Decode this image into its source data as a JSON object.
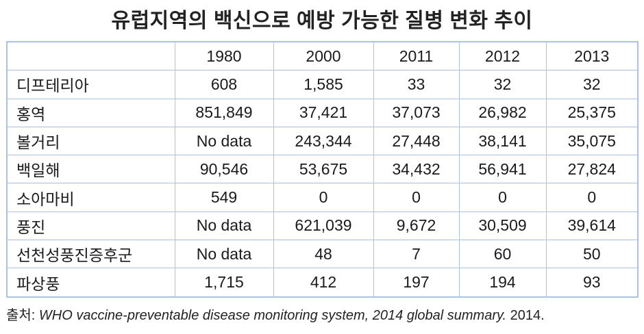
{
  "title": "유럽지역의 백신으로 예방 가능한 질병 변화 추이",
  "table": {
    "columns": [
      "",
      "1980",
      "2000",
      "2011",
      "2012",
      "2013"
    ],
    "rows": [
      {
        "label": "디프테리아",
        "values": [
          "608",
          "1,585",
          "33",
          "32",
          "32"
        ]
      },
      {
        "label": "홍역",
        "values": [
          "851,849",
          "37,421",
          "37,073",
          "26,982",
          "25,375"
        ]
      },
      {
        "label": "볼거리",
        "values": [
          "No data",
          "243,344",
          "27,448",
          "38,141",
          "35,075"
        ]
      },
      {
        "label": "백일해",
        "values": [
          "90,546",
          "53,675",
          "34,432",
          "56,941",
          "27,824"
        ]
      },
      {
        "label": "소아마비",
        "values": [
          "549",
          "0",
          "0",
          "0",
          "0"
        ]
      },
      {
        "label": "풍진",
        "values": [
          "No data",
          "621,039",
          "9,672",
          "30,509",
          "39,614"
        ]
      },
      {
        "label": "선천성풍진증후군",
        "values": [
          "No data",
          "48",
          "7",
          "60",
          "50"
        ]
      },
      {
        "label": "파상풍",
        "values": [
          "1,715",
          "412",
          "197",
          "194",
          "93"
        ]
      }
    ]
  },
  "source": {
    "prefix": "출처: ",
    "citation_italic": "WHO vaccine-preventable disease monitoring system, 2014 global summary.",
    "suffix": " 2014."
  },
  "colors": {
    "border": "#abc3e0",
    "text": "#1a1a1a",
    "background": "#ffffff"
  },
  "chart_data": {
    "type": "table",
    "title": "유럽지역의 백신으로 예방 가능한 질병 변화 추이",
    "columns": [
      "1980",
      "2000",
      "2011",
      "2012",
      "2013"
    ],
    "rows": [
      {
        "label": "디프테리아",
        "values": [
          608,
          1585,
          33,
          32,
          32
        ]
      },
      {
        "label": "홍역",
        "values": [
          851849,
          37421,
          37073,
          26982,
          25375
        ]
      },
      {
        "label": "볼거리",
        "values": [
          null,
          243344,
          27448,
          38141,
          35075
        ]
      },
      {
        "label": "백일해",
        "values": [
          90546,
          53675,
          34432,
          56941,
          27824
        ]
      },
      {
        "label": "소아마비",
        "values": [
          549,
          0,
          0,
          0,
          0
        ]
      },
      {
        "label": "풍진",
        "values": [
          null,
          621039,
          9672,
          30509,
          39614
        ]
      },
      {
        "label": "선천성풍진증후군",
        "values": [
          null,
          48,
          7,
          60,
          50
        ]
      },
      {
        "label": "파상풍",
        "values": [
          1715,
          412,
          197,
          194,
          93
        ]
      }
    ],
    "no_data_label": "No data",
    "source": "출처: WHO vaccine-preventable disease monitoring system, 2014 global summary. 2014."
  }
}
